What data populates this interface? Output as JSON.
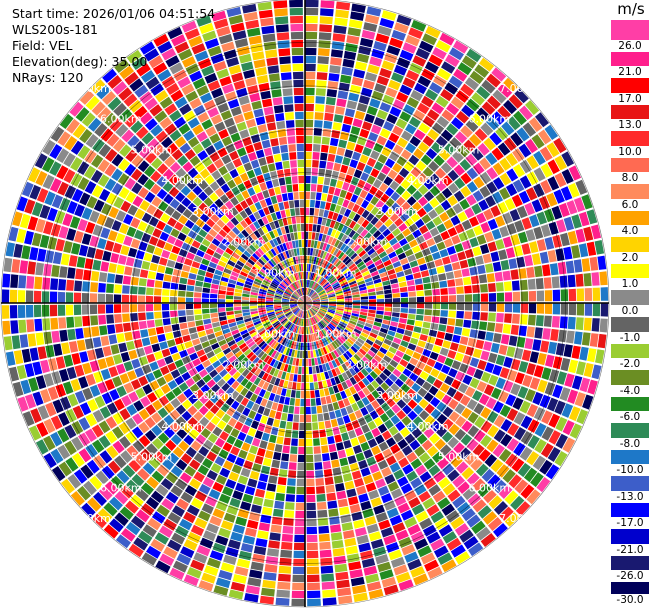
{
  "header": {
    "start_time": "Start time: 2026/01/06 04:51:54",
    "instrument": "WLS200s-181",
    "field": "Field: VEL",
    "elevation": "Elevation(deg): 35.00",
    "nrays": "NRays: 120"
  },
  "chart_data": {
    "type": "heatmap",
    "projection": "polar PPI",
    "unit": "m/s",
    "range_rings_km": [
      1.0,
      2.0,
      3.0,
      4.0,
      5.0,
      6.0,
      7.0
    ],
    "ring_labels": [
      "1.00km",
      "2.00km",
      "3.00km",
      "4.00km",
      "5.00km",
      "6.00km",
      "7.00km"
    ],
    "colorbar_ticks": [
      "26.0",
      "21.0",
      "17.0",
      "13.0",
      "10.0",
      "8.0",
      "6.0",
      "4.0",
      "2.0",
      "1.0",
      "0.0",
      "-1.0",
      "-2.0",
      "-4.0",
      "-6.0",
      "-8.0",
      "-10.0",
      "-13.0",
      "-17.0",
      "-21.0",
      "-26.0",
      "-30.0"
    ],
    "colorbar_colors": [
      "#ff3ea6",
      "#ff1f8c",
      "#ff0000",
      "#e81515",
      "#ff2a2a",
      "#ff6a52",
      "#ff8a5c",
      "#ffa200",
      "#ffd400",
      "#ffff00",
      "#8a8a8a",
      "#646464",
      "#9acd32",
      "#6b8e23",
      "#228b22",
      "#2e8b57",
      "#1e78c8",
      "#3d5ec9",
      "#0000ff",
      "#0000cd",
      "#191970",
      "#00005a"
    ]
  }
}
